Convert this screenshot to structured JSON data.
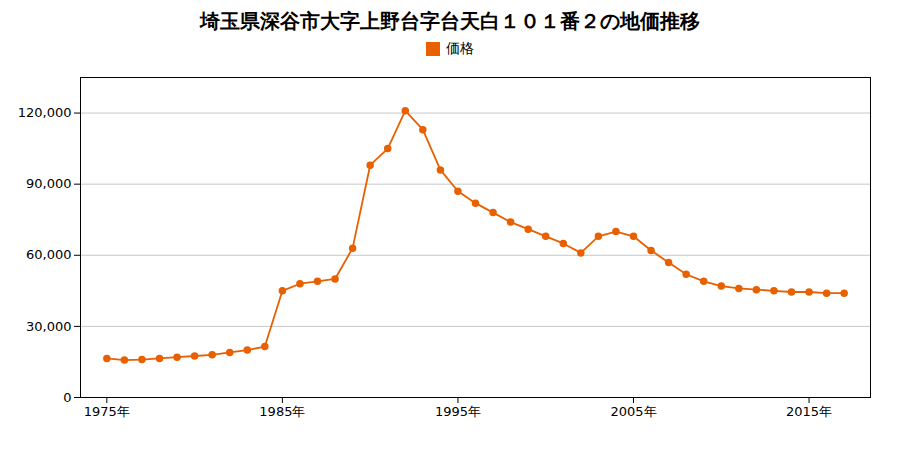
{
  "chart_data": {
    "type": "line",
    "title": "埼玉県深谷市大字上野台字台天白１０１番２の地価推移",
    "x": [
      1975,
      1976,
      1977,
      1978,
      1979,
      1980,
      1981,
      1982,
      1983,
      1984,
      1985,
      1986,
      1987,
      1988,
      1989,
      1990,
      1991,
      1992,
      1993,
      1994,
      1995,
      1996,
      1997,
      1998,
      1999,
      2000,
      2001,
      2002,
      2003,
      2004,
      2005,
      2006,
      2007,
      2008,
      2009,
      2010,
      2011,
      2012,
      2013,
      2014,
      2015,
      2016,
      2017
    ],
    "series": [
      {
        "name": "価格",
        "color": "#e86000",
        "marker": "circle",
        "values": [
          16500,
          15800,
          16000,
          16500,
          17000,
          17500,
          18000,
          19000,
          20000,
          21500,
          45000,
          48000,
          49000,
          50000,
          63000,
          98000,
          105000,
          121000,
          113000,
          96000,
          87000,
          82000,
          78000,
          74000,
          71000,
          68000,
          65000,
          61000,
          68000,
          70000,
          68000,
          62000,
          57000,
          52000,
          49000,
          47000,
          46000,
          45500,
          45000,
          44500,
          44500,
          44000,
          44000
        ]
      }
    ],
    "xlim": [
      1973.5,
      2018.5
    ],
    "xticks": [
      {
        "value": 1975,
        "label": "1975年"
      },
      {
        "value": 1985,
        "label": "1985年"
      },
      {
        "value": 1995,
        "label": "1995年"
      },
      {
        "value": 2005,
        "label": "2005年"
      },
      {
        "value": 2015,
        "label": "2015年"
      }
    ],
    "ylim": [
      0,
      135000
    ],
    "yticks": [
      0,
      {
        "value": 30000,
        "label": "30,000"
      },
      {
        "value": 60000,
        "label": "60,000"
      },
      {
        "value": 90000,
        "label": "90,000"
      },
      {
        "value": 120000,
        "label": "120,000"
      }
    ],
    "grid": "y",
    "legend": "top"
  }
}
